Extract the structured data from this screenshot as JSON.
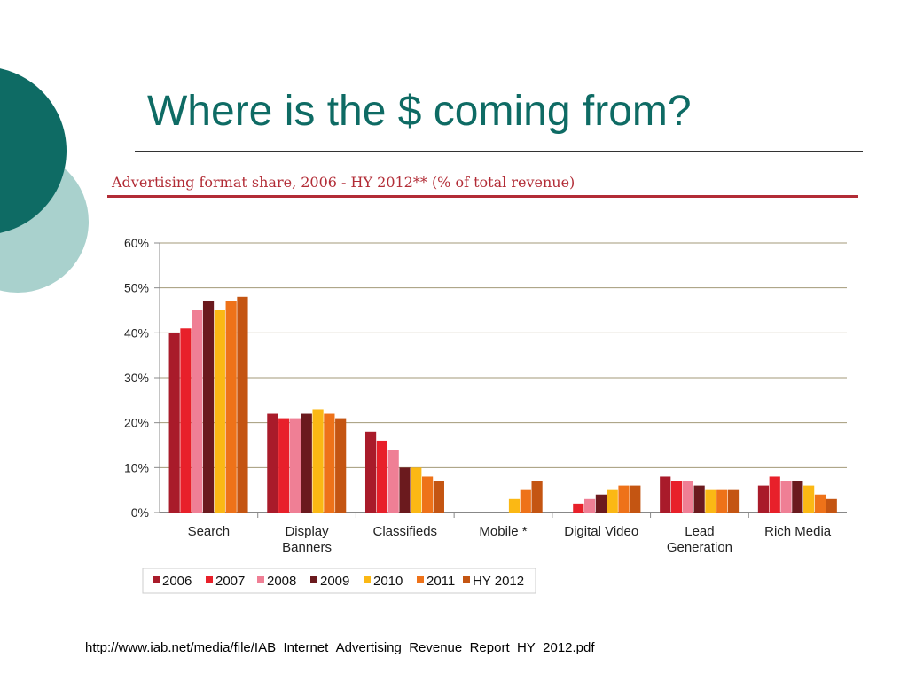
{
  "slide": {
    "title": "Where is the $ coming from?",
    "source_url": "http://www.iab.net/media/file/IAB_Internet_Advertising_Revenue_Report_HY_2012.pdf"
  },
  "theme": {
    "accent": "#0e6b64",
    "accent_light": "#a9d1cd",
    "chart_title_color": "#b22c36"
  },
  "chart_data": {
    "type": "bar",
    "title": "Advertising format share, 2006 - HY 2012** (% of total revenue)",
    "categories": [
      [
        "Search"
      ],
      [
        "Display",
        "Banners"
      ],
      [
        "Classifieds"
      ],
      [
        "Mobile *"
      ],
      [
        "Digital Video"
      ],
      [
        "Lead",
        "Generation"
      ],
      [
        "Rich Media"
      ]
    ],
    "series": [
      {
        "name": "2006",
        "color": "#a91b2a",
        "values": [
          40,
          22,
          18,
          0,
          0,
          8,
          6
        ]
      },
      {
        "name": "2007",
        "color": "#e8202a",
        "values": [
          41,
          21,
          16,
          0,
          2,
          7,
          8
        ]
      },
      {
        "name": "2008",
        "color": "#ef7f95",
        "values": [
          45,
          21,
          14,
          0,
          3,
          7,
          7
        ]
      },
      {
        "name": "2009",
        "color": "#6b1a1e",
        "values": [
          47,
          22,
          10,
          0,
          4,
          6,
          7
        ]
      },
      {
        "name": "2010",
        "color": "#fbb814",
        "values": [
          45,
          23,
          10,
          3,
          5,
          5,
          6
        ]
      },
      {
        "name": "2011",
        "color": "#ee7219",
        "values": [
          47,
          22,
          8,
          5,
          6,
          5,
          4
        ]
      },
      {
        "name": "HY 2012",
        "color": "#c45512",
        "values": [
          48,
          21,
          7,
          7,
          6,
          5,
          3
        ]
      }
    ],
    "yticks": [
      "0%",
      "10%",
      "20%",
      "30%",
      "40%",
      "50%",
      "60%"
    ],
    "ylim": [
      0,
      60
    ],
    "grid": true,
    "legend_position": "bottom-left"
  }
}
